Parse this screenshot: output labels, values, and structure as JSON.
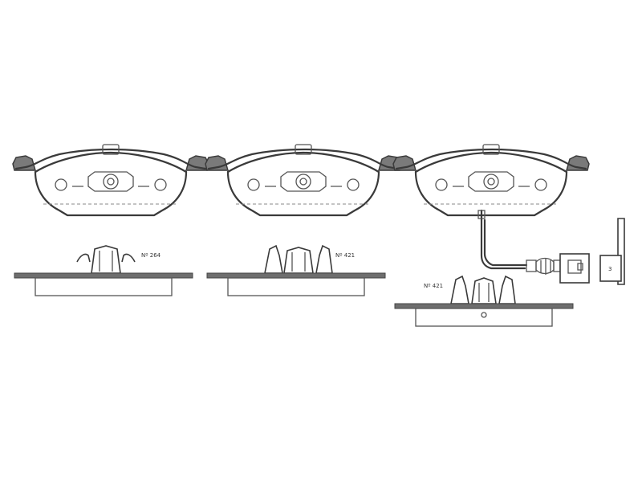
{
  "labels": {
    "clip_1": "Nº 264",
    "clip_2": "Nº 421",
    "clip_3": "Nº 421",
    "connector": "3"
  },
  "colors": {
    "line": "#3a3a3a",
    "backplate": "#6e6e6e",
    "background": "#ffffff"
  }
}
